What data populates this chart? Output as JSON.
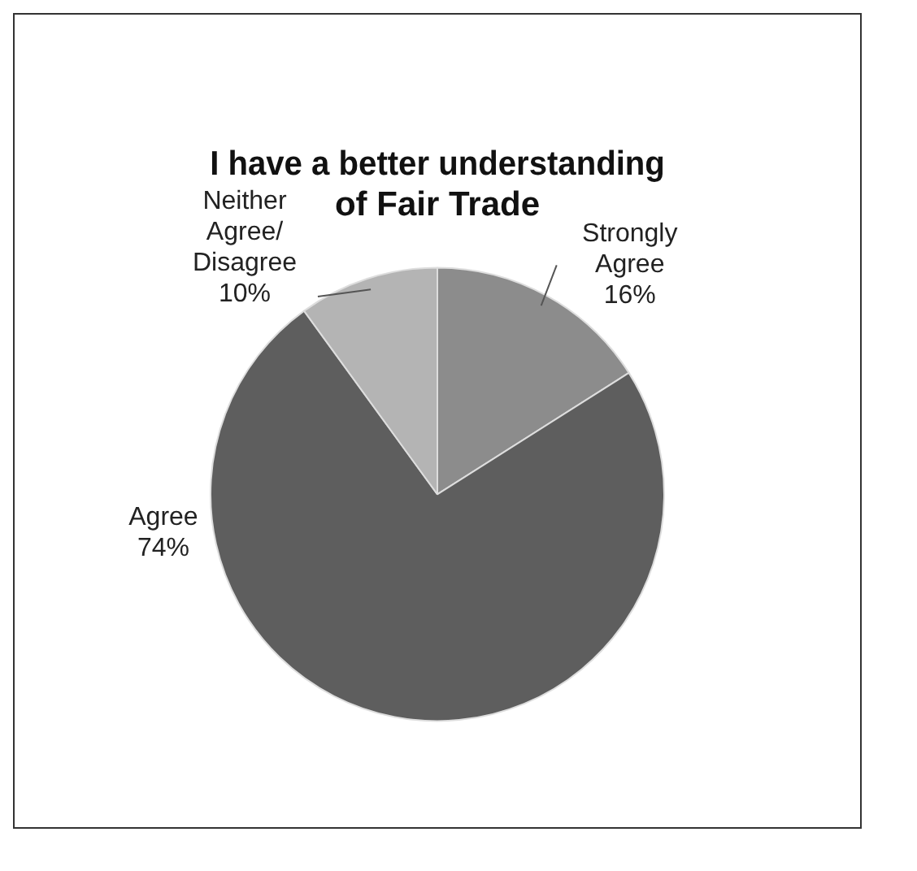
{
  "chart_data": {
    "type": "pie",
    "title": "I have a better understanding of Fair Trade",
    "categories": [
      "Strongly Agree",
      "Agree",
      "Neither Agree/Disagree"
    ],
    "values": [
      16,
      74,
      10
    ],
    "colors": [
      "#8c8c8c",
      "#5e5e5e",
      "#b4b4b4"
    ],
    "value_labels": [
      "16%",
      "74%",
      "10%"
    ],
    "legend": false
  }
}
